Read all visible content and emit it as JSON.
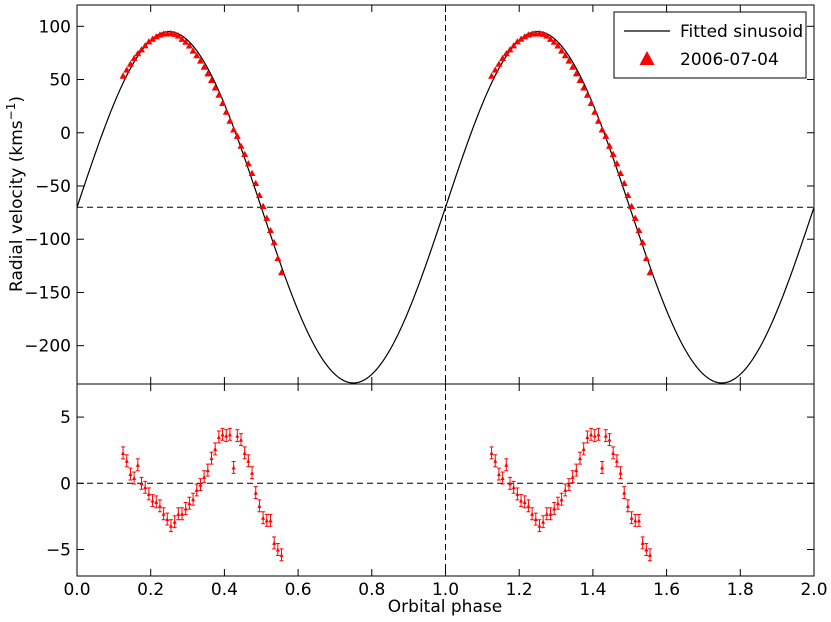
{
  "chart_data": {
    "type": "line",
    "xlabel": "Orbital phase",
    "ylabel": "Radial velocity (kms",
    "ylabel_unit_sup": "−1",
    "ylabel_close": ")",
    "xlim": [
      0.0,
      2.0
    ],
    "xticks": [
      "0.0",
      "0.2",
      "0.4",
      "0.6",
      "0.8",
      "1.0",
      "1.2",
      "1.4",
      "1.6",
      "1.8",
      "2.0"
    ],
    "top_panel": {
      "ylim": [
        -236,
        120
      ],
      "yticks": [
        "100",
        "50",
        "0",
        "−50",
        "−100",
        "−150",
        "−200"
      ],
      "ytick_values": [
        100,
        50,
        0,
        -50,
        -100,
        -150,
        -200
      ],
      "hline": -70,
      "vline": 1.0,
      "model": {
        "name": "Fitted sinusoid",
        "gamma": -70,
        "K": 165,
        "color": "#000000"
      },
      "series": {
        "name": "2006-07-04",
        "color": "#ff0000",
        "marker": "triangle",
        "x": [
          0.125,
          0.135,
          0.145,
          0.155,
          0.165,
          0.175,
          0.185,
          0.195,
          0.205,
          0.215,
          0.225,
          0.235,
          0.245,
          0.255,
          0.265,
          0.275,
          0.285,
          0.295,
          0.305,
          0.315,
          0.325,
          0.335,
          0.345,
          0.355,
          0.365,
          0.375,
          0.385,
          0.395,
          0.405,
          0.415,
          0.425,
          0.435,
          0.445,
          0.455,
          0.465,
          0.475,
          0.485,
          0.495,
          0.505,
          0.515,
          0.525,
          0.535,
          0.545,
          0.555
        ],
        "y": [
          53.4,
          59.1,
          64.6,
          70.0,
          74.5,
          78.1,
          81.9,
          85.6,
          88.1,
          90.3,
          92.0,
          92.9,
          93.0,
          93.4,
          92.7,
          91.1,
          88.0,
          85.3,
          81.8,
          77.0,
          72.6,
          67.6,
          61.8,
          55.6,
          49.4,
          42.3,
          35.5,
          27.8,
          19.5,
          11.1,
          2.9,
          -3.1,
          -12.4,
          -20.2,
          -28.9,
          -38.0,
          -47.4,
          -58.6,
          -69.0,
          -80.1,
          -91.7,
          -103.0,
          -118.0,
          -131.2
        ]
      }
    },
    "bottom_panel": {
      "ylim": [
        -7,
        7.5
      ],
      "yticks": [
        "5",
        "0",
        "−5"
      ],
      "ytick_values": [
        5,
        0,
        -5
      ],
      "hline": 0,
      "vline": 1.0,
      "residuals": {
        "color": "#ff0000",
        "yerr": 0.45,
        "x": [
          0.125,
          0.135,
          0.145,
          0.155,
          0.165,
          0.175,
          0.185,
          0.195,
          0.205,
          0.215,
          0.225,
          0.235,
          0.245,
          0.255,
          0.265,
          0.275,
          0.285,
          0.295,
          0.305,
          0.315,
          0.325,
          0.335,
          0.345,
          0.355,
          0.365,
          0.375,
          0.385,
          0.395,
          0.405,
          0.415,
          0.425,
          0.435,
          0.445,
          0.455,
          0.465,
          0.475,
          0.485,
          0.495,
          0.505,
          0.515,
          0.525,
          0.535,
          0.545,
          0.555
        ],
        "y": [
          2.3,
          1.7,
          0.7,
          0.4,
          1.4,
          0.0,
          -0.3,
          -0.8,
          -1.3,
          -1.4,
          -1.7,
          -2.3,
          -2.7,
          -3.2,
          -2.9,
          -2.3,
          -2.3,
          -1.9,
          -1.5,
          -1.2,
          -0.5,
          -0.1,
          0.5,
          1.0,
          1.9,
          2.6,
          3.5,
          3.7,
          3.6,
          3.7,
          1.2,
          3.6,
          3.3,
          2.3,
          1.7,
          0.8,
          -0.7,
          -1.7,
          -2.6,
          -2.8,
          -2.8,
          -4.5,
          -5.0,
          -5.4
        ]
      }
    },
    "legend": {
      "placement": "top-right",
      "entries": [
        "Fitted sinusoid",
        "2006-07-04"
      ]
    }
  }
}
